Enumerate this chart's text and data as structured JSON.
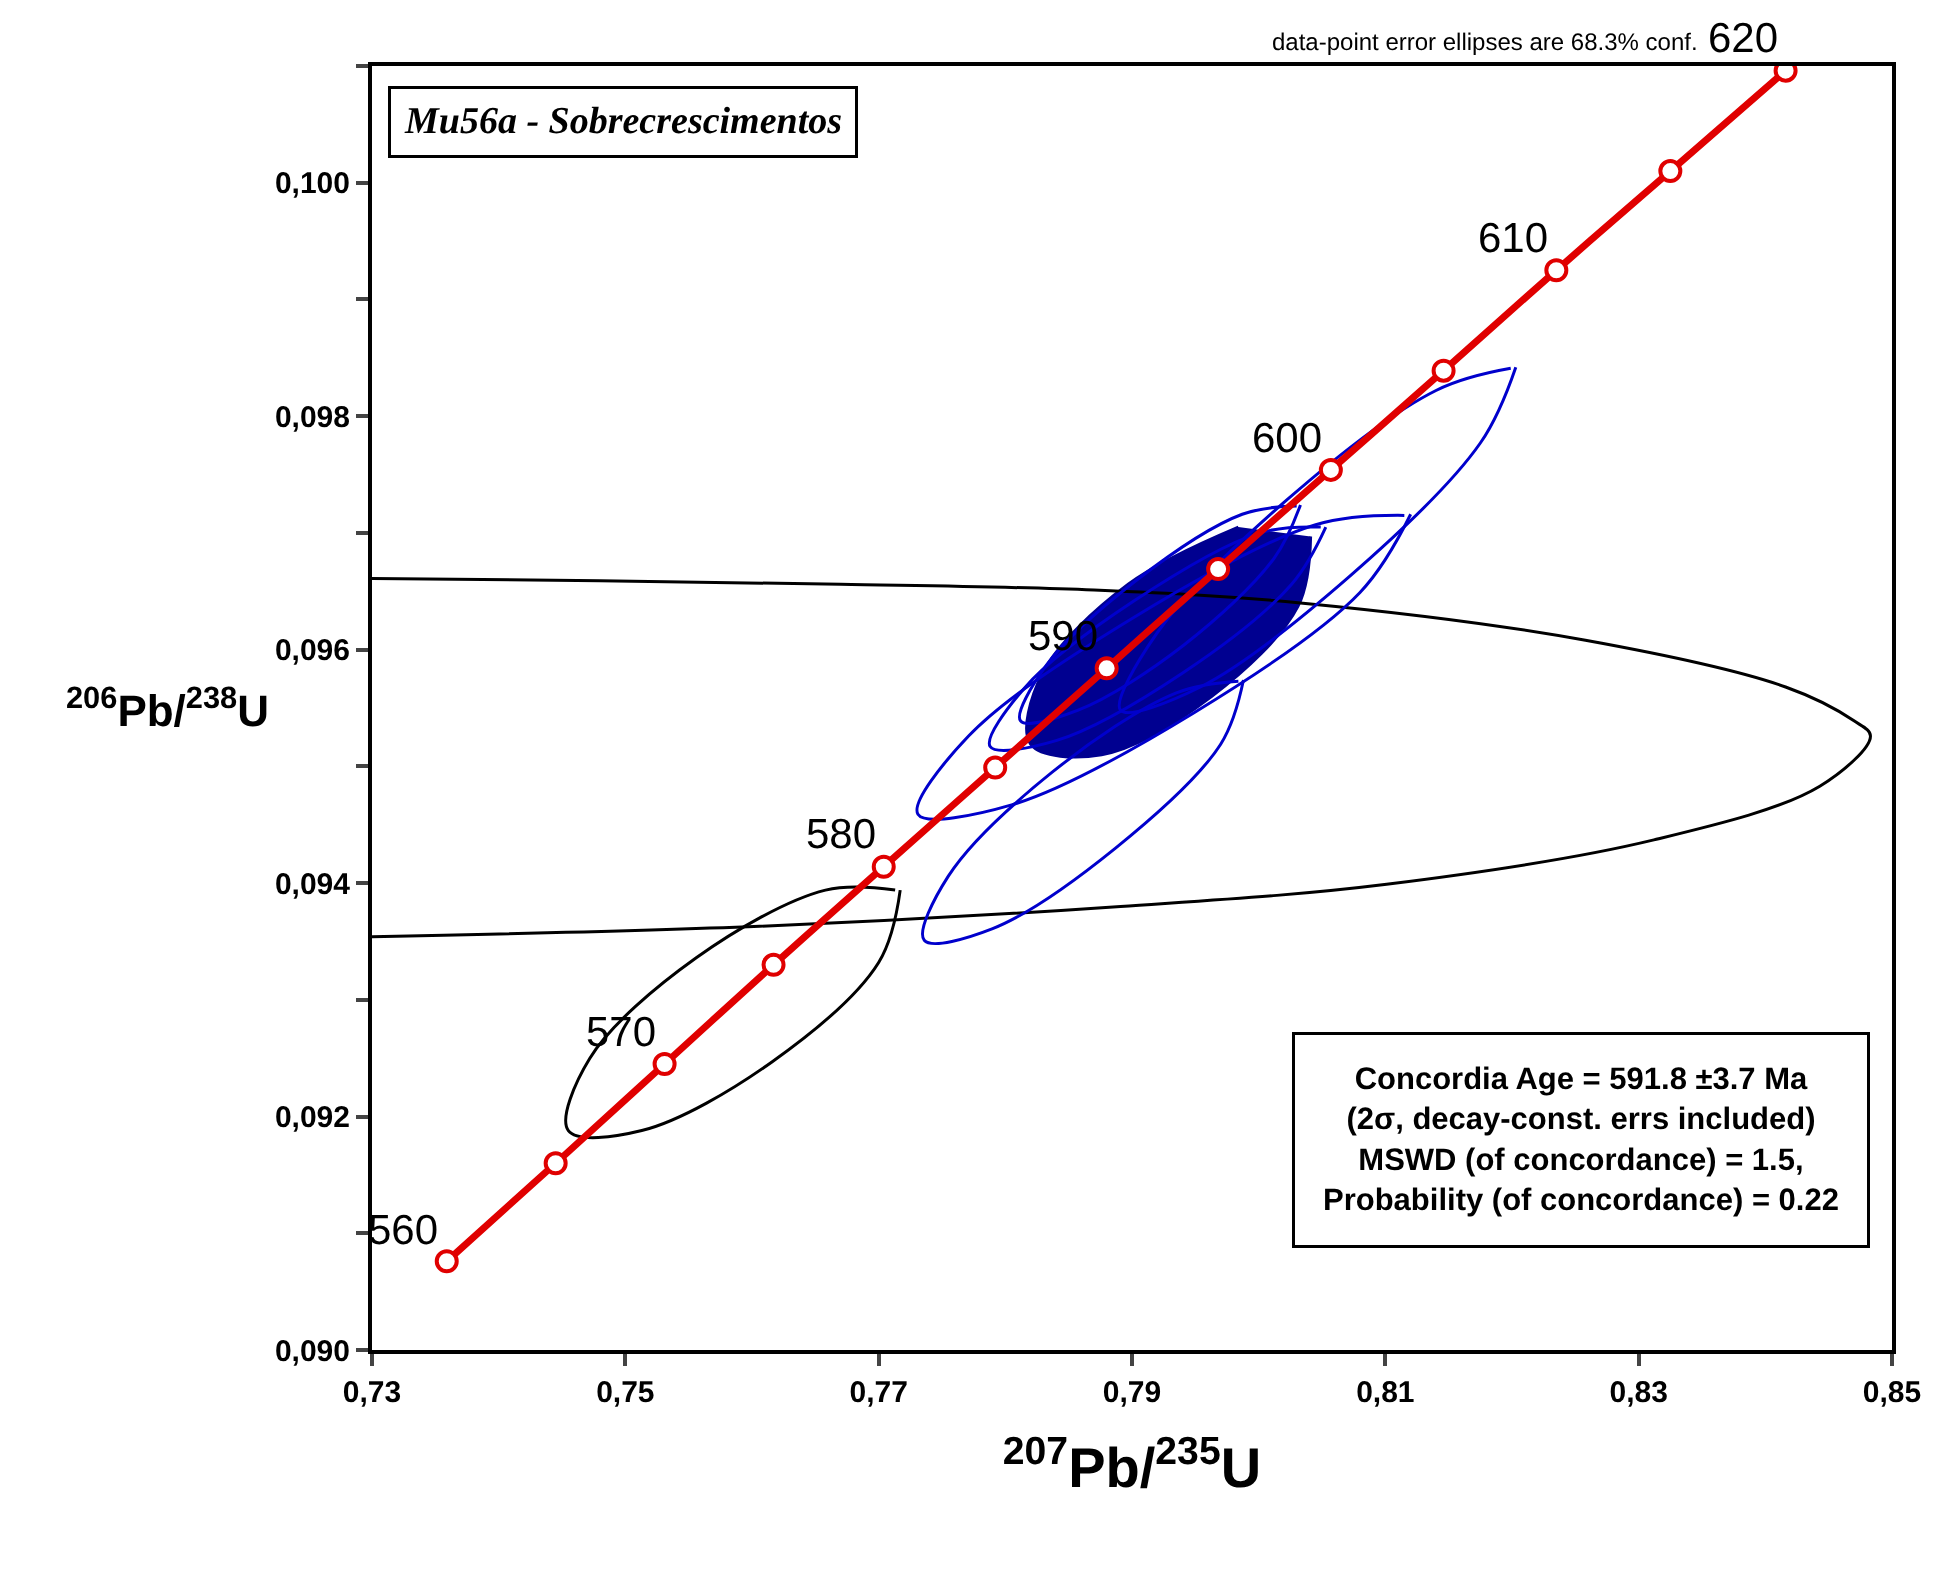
{
  "chart_data": {
    "type": "line",
    "title": "Mu56a - Sobrecrescimentos",
    "xlabel": "$^{207}$Pb/$^{235}$U",
    "ylabel": "$^{206}$Pb/$^{238}$U",
    "xlim": [
      0.73,
      0.85
    ],
    "ylim": [
      0.09,
      0.101
    ],
    "xticks": [
      {
        "value": 0.73,
        "label": "0,73"
      },
      {
        "value": 0.75,
        "label": "0,75"
      },
      {
        "value": 0.77,
        "label": "0,77"
      },
      {
        "value": 0.79,
        "label": "0,79"
      },
      {
        "value": 0.81,
        "label": "0,81"
      },
      {
        "value": 0.83,
        "label": "0,83"
      },
      {
        "value": 0.85,
        "label": "0,85"
      }
    ],
    "yticks": [
      {
        "value": 0.09,
        "label": "0,090"
      },
      {
        "value": 0.091,
        "label": null
      },
      {
        "value": 0.092,
        "label": "0,092"
      },
      {
        "value": 0.093,
        "label": null
      },
      {
        "value": 0.094,
        "label": "0,094"
      },
      {
        "value": 0.095,
        "label": null
      },
      {
        "value": 0.096,
        "label": "0,096"
      },
      {
        "value": 0.097,
        "label": null
      },
      {
        "value": 0.098,
        "label": "0,098"
      },
      {
        "value": 0.099,
        "label": null
      },
      {
        "value": 0.1,
        "label": "0,100"
      },
      {
        "value": 0.101,
        "label": null
      }
    ],
    "grid": false,
    "series": [
      {
        "color": "#000000",
        "x": [
          0.73,
          0.748,
          0.767,
          0.787,
          0.8033,
          0.8258,
          0.8416,
          0.847,
          0.8483,
          0.8443,
          0.8312,
          0.8101,
          0.7891,
          0.7606,
          0.73
        ],
        "values": [
          0.09661,
          0.09659,
          0.09656,
          0.09651,
          0.0964,
          0.09608,
          0.09568,
          0.09539,
          0.09526,
          0.09483,
          0.09437,
          0.09399,
          0.0938,
          0.09363,
          0.09354
        ]
      },
      {
        "color": "#000000",
        "x": [
          0.7717,
          0.77,
          0.7616,
          0.7513,
          0.7455,
          0.7472,
          0.7556,
          0.7658,
          0.7713
        ],
        "values": [
          0.09394,
          0.09332,
          0.09247,
          0.09188,
          0.09188,
          0.0925,
          0.09336,
          0.09394,
          0.09394
        ]
      },
      {
        "color": "#0000cc",
        "x": [
          0.8203,
          0.8175,
          0.8072,
          0.7954,
          0.7891,
          0.7919,
          0.8022,
          0.814,
          0.8199
        ],
        "values": [
          0.09842,
          0.09777,
          0.09663,
          0.09568,
          0.09548,
          0.09613,
          0.09728,
          0.09822,
          0.09841
        ]
      },
      {
        "color": "#0000cc",
        "x": [
          0.812,
          0.808,
          0.7949,
          0.7805,
          0.7731,
          0.7771,
          0.7902,
          0.8045,
          0.8115
        ],
        "values": [
          0.09716,
          0.09649,
          0.09546,
          0.09467,
          0.09459,
          0.09526,
          0.09628,
          0.09707,
          0.09715
        ]
      },
      {
        "color": "#0000cc",
        "x": [
          0.7988,
          0.797,
          0.7887,
          0.779,
          0.7736,
          0.7755,
          0.7837,
          0.7935,
          0.7984
        ],
        "values": [
          0.09574,
          0.09519,
          0.0943,
          0.09361,
          0.09351,
          0.09406,
          0.09495,
          0.09563,
          0.09573
        ]
      },
      {
        "color": "#0000cc",
        "x": [
          0.8053,
          0.8026,
          0.794,
          0.784,
          0.7788,
          0.7815,
          0.7902,
          0.8001,
          0.8049
        ],
        "values": [
          0.09705,
          0.09656,
          0.0958,
          0.09522,
          0.09517,
          0.09567,
          0.09642,
          0.097,
          0.09705
        ]
      },
      {
        "color": "#0000cc",
        "x": [
          0.8033,
          0.8012,
          0.7941,
          0.7857,
          0.7812,
          0.7832,
          0.7903,
          0.7987,
          0.803
        ],
        "values": [
          0.09724,
          0.09678,
          0.09604,
          0.09548,
          0.09539,
          0.09586,
          0.09659,
          0.09716,
          0.09723
        ]
      },
      {
        "type": "area",
        "color": "#000090",
        "x": [
          0.8041,
          0.8031,
          0.7963,
          0.7876,
          0.782,
          0.7829,
          0.7897,
          0.7984
        ],
        "values": [
          0.09697,
          0.09637,
          0.0956,
          0.0951,
          0.09519,
          0.09579,
          0.09656,
          0.09705
        ]
      },
      {
        "color": "#e00000",
        "marker": "circle",
        "x": [
          0.7359,
          0.7445,
          0.7531,
          0.7617,
          0.7704,
          0.7792,
          0.788,
          0.7968,
          0.8057,
          0.8146,
          0.8235,
          0.8325,
          0.8416
        ],
        "values": [
          0.09076,
          0.0916,
          0.09245,
          0.0933,
          0.09414,
          0.09499,
          0.09584,
          0.09669,
          0.09754,
          0.09839,
          0.09925,
          0.1001,
          0.10096
        ]
      }
    ],
    "annotations": [
      "data-point error ellipses are 68.3% conf.",
      "Concordia Age = 591.8 ±3.7 Ma\n(2σ, decay-const. errs included)\nMSWD (of concordance) = 1.5,\nProbability (of concordance) = 0.22",
      {
        "text": "560",
        "x": 0.7359,
        "y": 0.09076
      },
      {
        "text": "570",
        "x": 0.7531,
        "y": 0.09245
      },
      {
        "text": "580",
        "x": 0.7704,
        "y": 0.09414
      },
      {
        "text": "590",
        "x": 0.788,
        "y": 0.09584
      },
      {
        "text": "600",
        "x": 0.8057,
        "y": 0.09754
      },
      {
        "text": "610",
        "x": 0.8235,
        "y": 0.09925
      },
      {
        "text": "620",
        "x": 0.8416,
        "y": 0.10096
      }
    ]
  }
}
